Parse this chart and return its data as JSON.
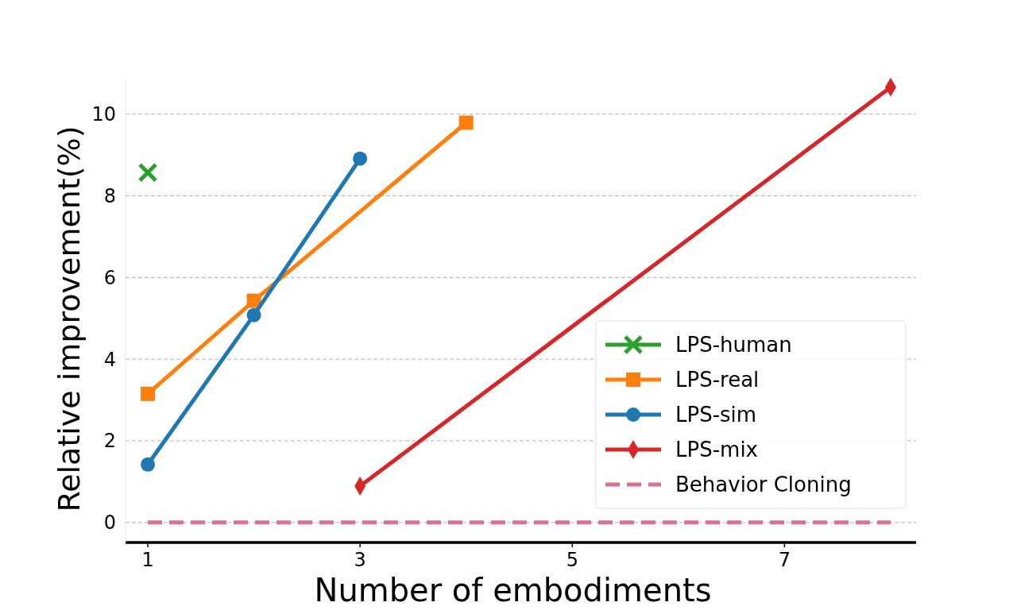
{
  "chart_data": {
    "type": "line",
    "xlabel": "Number of embodiments",
    "ylabel": "Relative improvement(%)",
    "xlim": [
      0.79,
      8.24
    ],
    "ylim": [
      -0.49,
      10.85
    ],
    "xticks": [
      1,
      3,
      5,
      7
    ],
    "yticks": [
      0,
      2,
      4,
      6,
      8,
      10
    ],
    "grid": "y",
    "legend": "lower right",
    "series": [
      {
        "name": "LPS-human",
        "color": "#2ca02c",
        "x": [
          1
        ],
        "values": [
          8.57
        ],
        "marker": "cross"
      },
      {
        "name": "LPS-real",
        "color": "#ff7f0e",
        "x": [
          1,
          2,
          4
        ],
        "values": [
          3.15,
          5.43,
          9.79
        ],
        "marker": "square"
      },
      {
        "name": "LPS-sim",
        "color": "#1f77b4",
        "x": [
          1,
          2,
          3
        ],
        "values": [
          1.42,
          5.08,
          8.91
        ],
        "marker": "circle"
      },
      {
        "name": "LPS-mix",
        "color": "#d62728",
        "x": [
          3,
          8
        ],
        "values": [
          0.89,
          10.66
        ],
        "marker": "diamond"
      },
      {
        "name": "Behavior Cloning",
        "color": "#dc6f96",
        "x": [
          1,
          8
        ],
        "values": [
          0,
          0
        ],
        "marker": "none",
        "line_style": "dashed"
      }
    ]
  }
}
